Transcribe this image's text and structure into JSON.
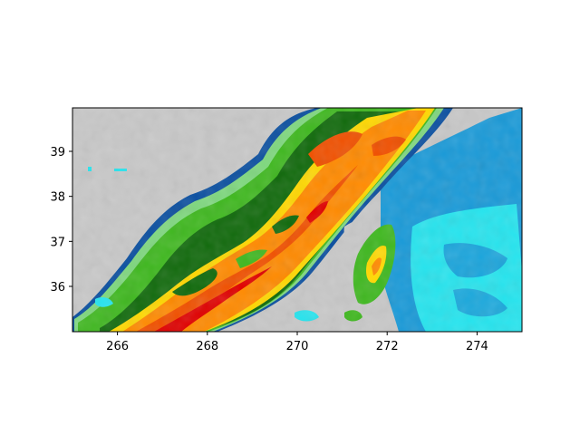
{
  "chart_data": {
    "type": "heatmap",
    "description_free": true,
    "x_axis": {
      "ticks": [
        266,
        268,
        270,
        272,
        274
      ],
      "tick_labels": [
        "266",
        "268",
        "270",
        "272",
        "274"
      ],
      "range": [
        265,
        275
      ]
    },
    "y_axis": {
      "ticks": [
        36,
        37,
        38,
        39
      ],
      "tick_labels": [
        "36",
        "37",
        "38",
        "39"
      ],
      "range": [
        35,
        40
      ]
    },
    "grid": false,
    "legend": "none",
    "colors": {
      "no_data": "#c8c8c8",
      "palette": [
        "#26e4ee",
        "#1a9ad8",
        "#0a4fa0",
        "#7fd87f",
        "#3fb81f",
        "#116a0c",
        "#ffd800",
        "#ff8a00",
        "#f05000",
        "#e00000"
      ]
    }
  }
}
